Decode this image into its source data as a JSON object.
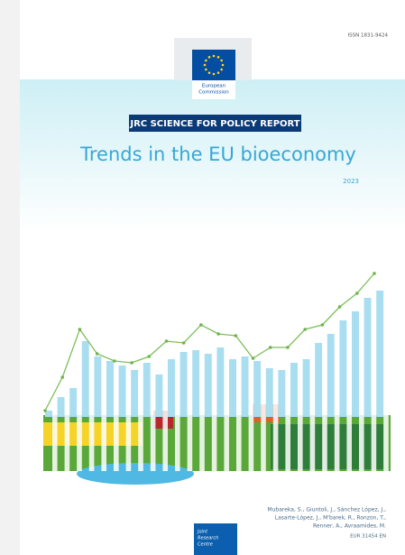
{
  "header": {
    "issn": "ISSN 1831-9424",
    "publisher_lines": [
      "European",
      "Commission"
    ]
  },
  "series_label": "JRC SCIENCE FOR POLICY REPORT",
  "title": "Trends in the EU bioeconomy",
  "year": "2023",
  "authors": [
    "Mubareka, S., Giuntoli, J., Sánchez López, J.,",
    "Lasarte-López, J., M'barek, R., Ronzon, T.,",
    "Renner, A., Avraamides, M."
  ],
  "report_number": "EUR 31454 EN",
  "footer_logo_lines": [
    "Joint",
    "Research",
    "Centre"
  ]
}
